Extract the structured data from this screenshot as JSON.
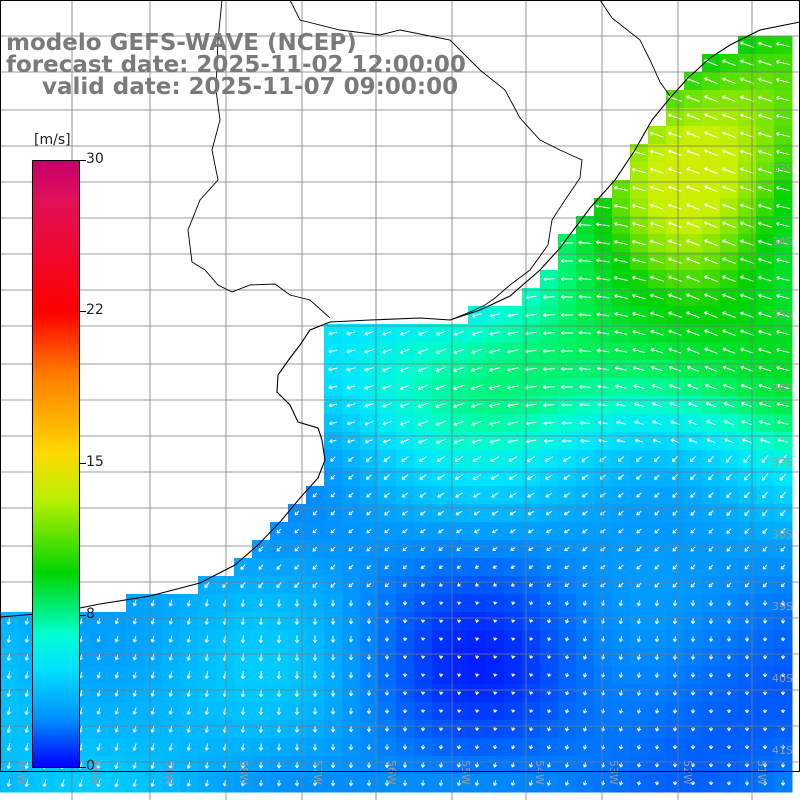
{
  "title": {
    "line1": "modelo GEFS-WAVE (NCEP)",
    "line2": "forecast date: 2025-11-02 12:00:00",
    "line3": "valid date: 2025-11-07 09:00:00"
  },
  "colorbar": {
    "unit": "[m/s]",
    "ticks": [
      {
        "label": "30",
        "value": 30
      },
      {
        "label": "22",
        "value": 22
      },
      {
        "label": "15",
        "value": 15
      },
      {
        "label": "8",
        "value": 8
      },
      {
        "label": "0",
        "value": 0
      }
    ],
    "colors": [
      "#0000ff",
      "#00a0ff",
      "#00ffff",
      "#00d400",
      "#ffd800",
      "#ff0000",
      "#c2006a"
    ]
  },
  "lat_labels": [
    "33S",
    "34S",
    "35S",
    "36S",
    "37S",
    "38S",
    "39S",
    "40S",
    "41S"
  ],
  "lon_labels": [
    "61W",
    "60W",
    "59W",
    "58W",
    "57W",
    "56W",
    "55W",
    "54W",
    "53W",
    "52W",
    "51W"
  ],
  "field": {
    "variable": "wind speed",
    "units": "m/s",
    "range": [
      0,
      30
    ]
  }
}
